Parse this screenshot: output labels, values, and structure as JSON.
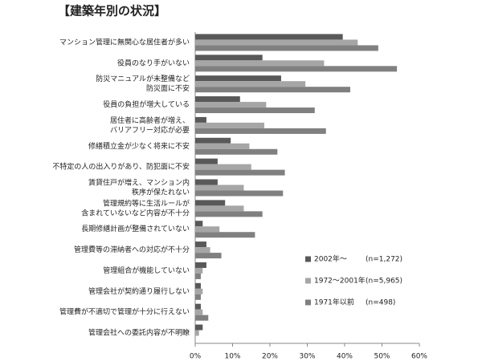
{
  "chart_data": {
    "type": "hbar",
    "title": "【建築年別の状況】",
    "categories": [
      [
        "マンション管理に無関心な居住者が多い"
      ],
      [
        "役員のなり手がいない"
      ],
      [
        "防災マニュアルが未整備など",
        "防災面に不安"
      ],
      [
        "役員の負担が増大している"
      ],
      [
        "居住者に高齢者が増え、",
        "バリアフリー対応が必要"
      ],
      [
        "修繕積立金が少なく将来に不安"
      ],
      [
        "不特定の人の出入りがあり、防犯面に不安"
      ],
      [
        "賃貸住戸が増え、マンション内",
        "秩序が保たれない"
      ],
      [
        "管理規約等に生活ルールが",
        "含まれていないなど内容が不十分"
      ],
      [
        "長期修繕計画が整備されていない"
      ],
      [
        "管理費等の滞納者への対応が不十分"
      ],
      [
        "管理組合が機能していない"
      ],
      [
        "管理会社が契約通り履行しない"
      ],
      [
        "管理費が不適切で管理が十分に行えない"
      ],
      [
        "管理会社への委託内容が不明瞭"
      ]
    ],
    "series": [
      {
        "name": "2002年〜",
        "sample": "(n=1,272)",
        "color": "#595959",
        "values": [
          39.5,
          18,
          23,
          12,
          3,
          9.5,
          6,
          6,
          8,
          2,
          3,
          3,
          1.5,
          1.5,
          2
        ]
      },
      {
        "name": "1972〜2001年",
        "sample": "(n=5,965)",
        "color": "#a6a6a6",
        "values": [
          43.5,
          34.5,
          29.5,
          19,
          18.5,
          14.5,
          15,
          13,
          13,
          6.5,
          4,
          2,
          2,
          2,
          1
        ]
      },
      {
        "name": "1971年以前",
        "sample": "(n=498)",
        "color": "#808080",
        "values": [
          49,
          54,
          41.5,
          32,
          35,
          22,
          24,
          23.5,
          18,
          16,
          7,
          1.5,
          1.5,
          3.5,
          0
        ]
      }
    ],
    "xlim": [
      0,
      60
    ],
    "xticks": [
      {
        "value": 0,
        "label": "0%"
      },
      {
        "value": 10,
        "label": "10%"
      },
      {
        "value": 20,
        "label": "20%"
      },
      {
        "value": 30,
        "label": "30%"
      },
      {
        "value": 40,
        "label": "40%"
      },
      {
        "value": 50,
        "label": "50%"
      },
      {
        "value": 60,
        "label": "60%"
      }
    ]
  }
}
